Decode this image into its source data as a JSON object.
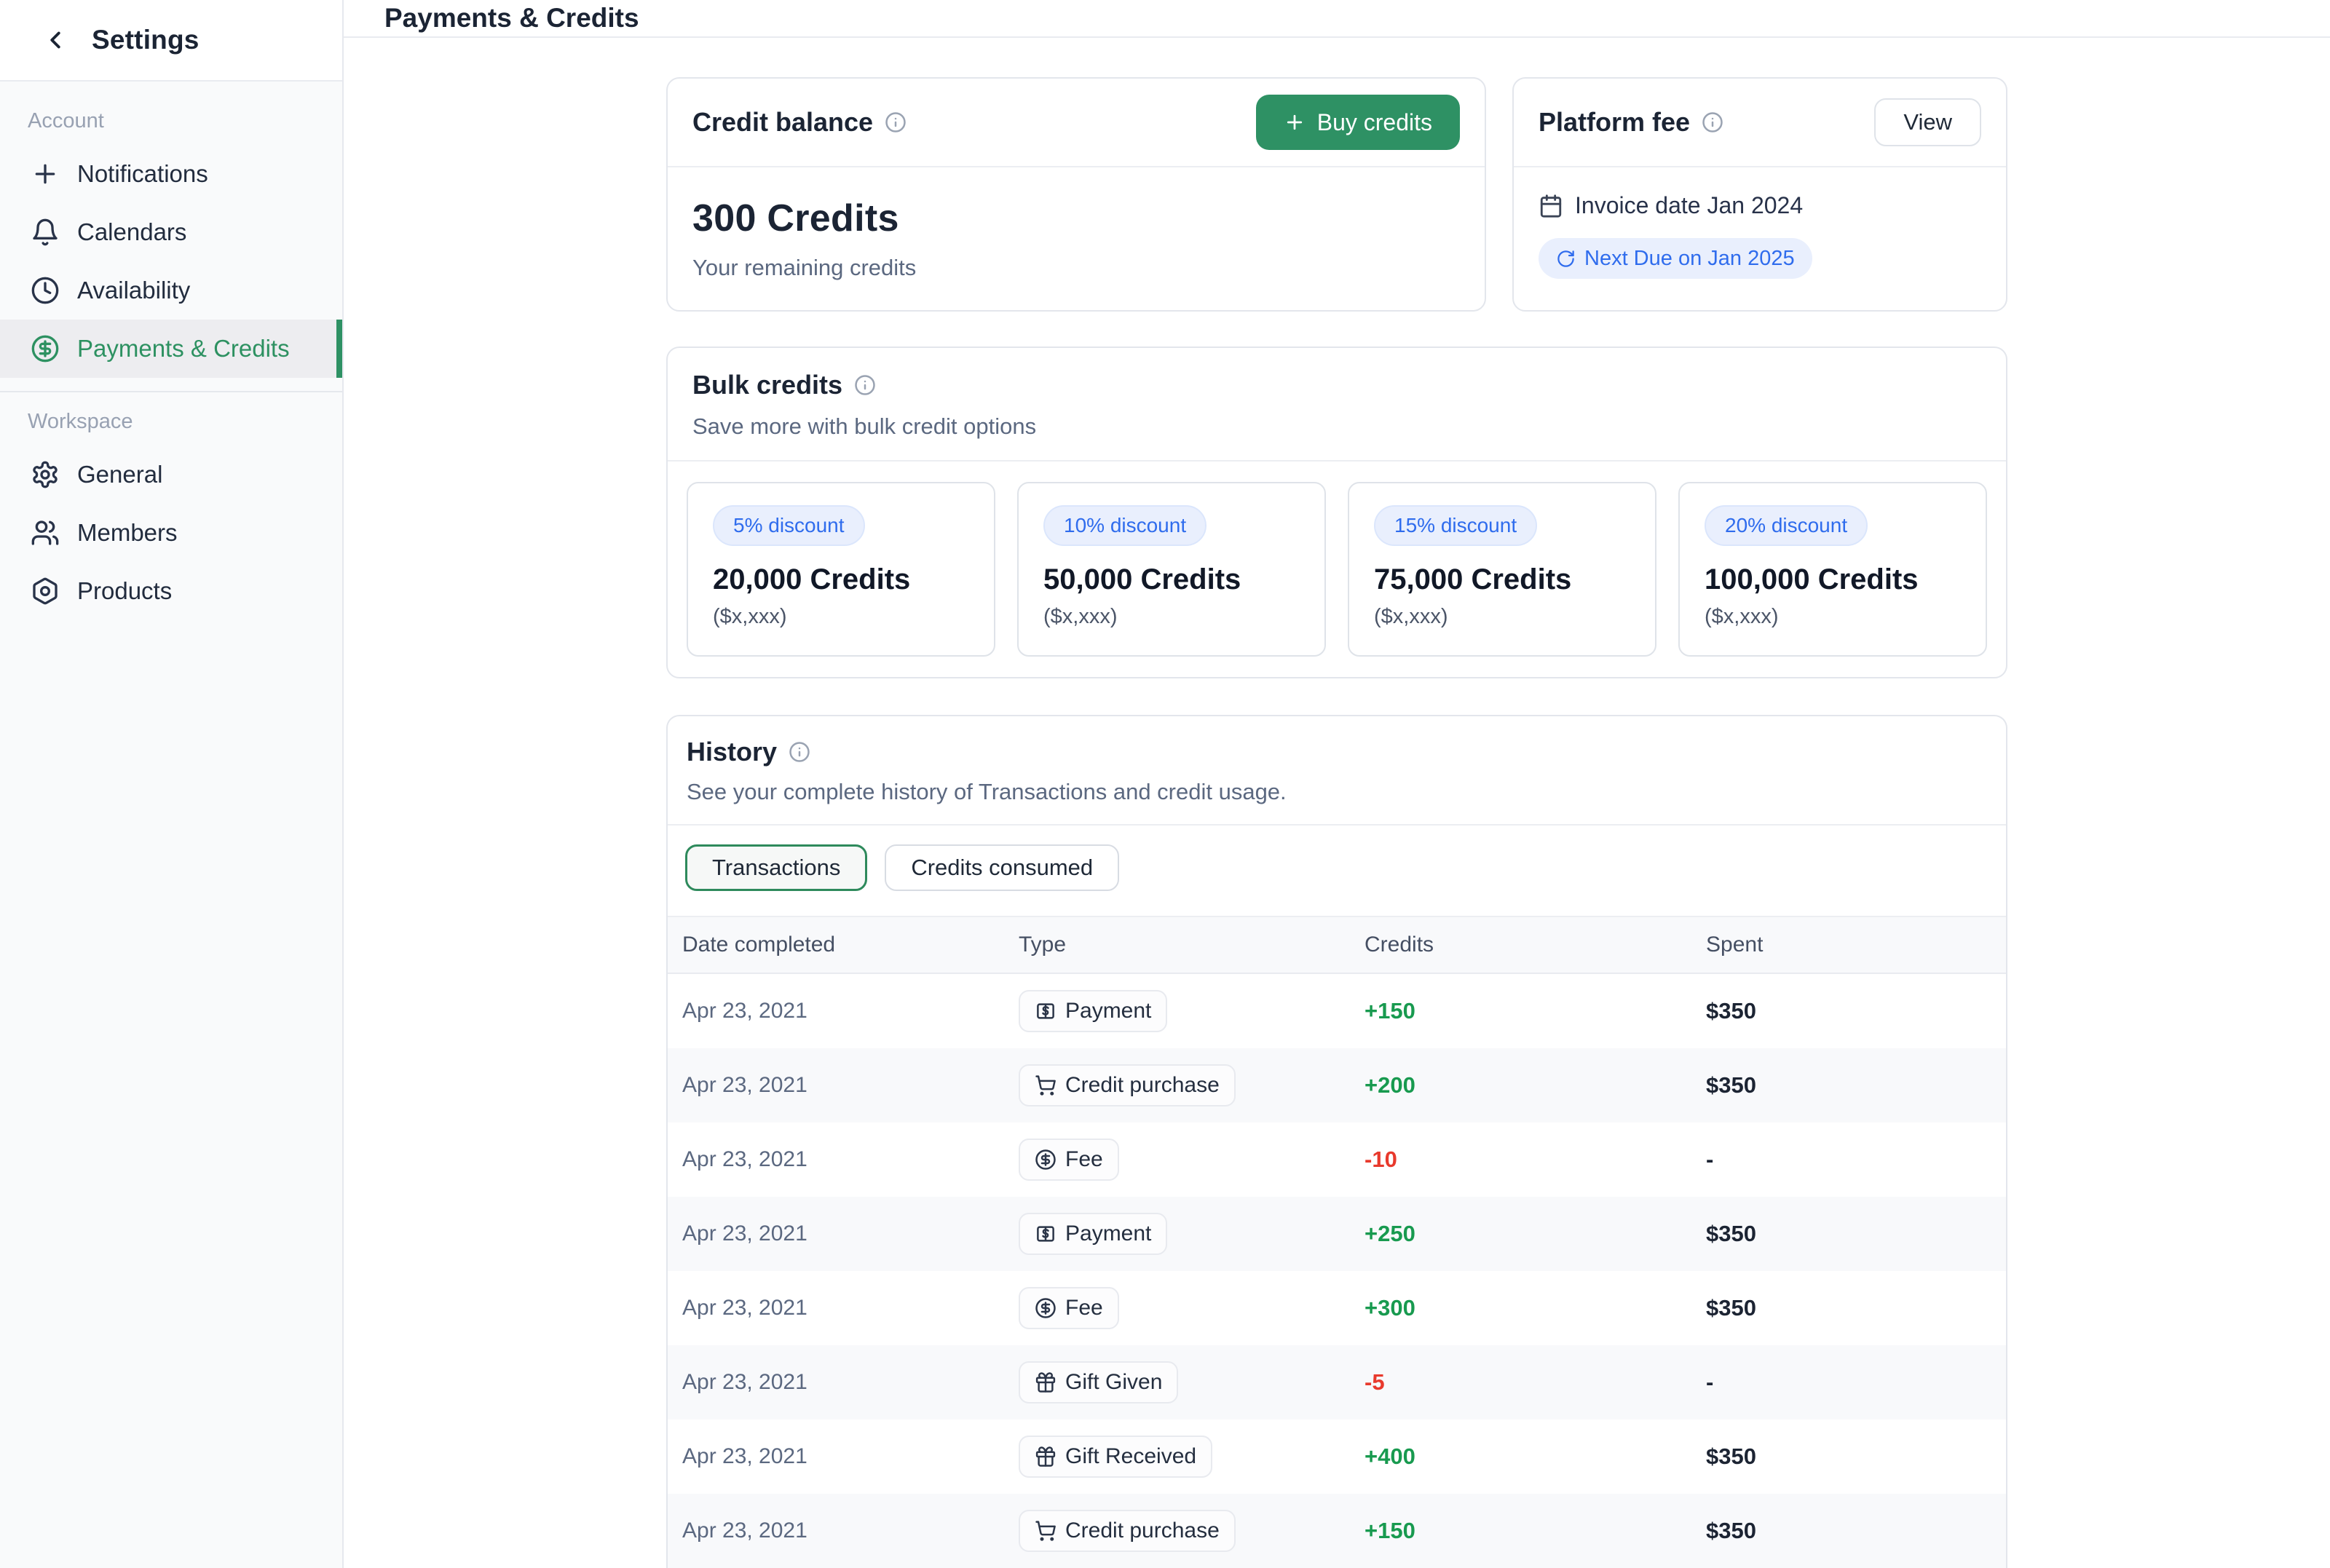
{
  "sidebar": {
    "title": "Settings",
    "sections": [
      {
        "label": "Account",
        "items": [
          {
            "label": "Notifications"
          },
          {
            "label": "Calendars"
          },
          {
            "label": "Availability"
          },
          {
            "label": "Payments & Credits"
          }
        ]
      },
      {
        "label": "Workspace",
        "items": [
          {
            "label": "General"
          },
          {
            "label": "Members"
          },
          {
            "label": "Products"
          }
        ]
      }
    ]
  },
  "header": {
    "title": "Payments & Credits"
  },
  "credit_balance": {
    "title": "Credit balance",
    "buy_button": "Buy credits",
    "amount": "300 Credits",
    "subtitle": "Your remaining credits"
  },
  "platform_fee": {
    "title": "Platform fee",
    "view_button": "View",
    "invoice_date": "Invoice date Jan 2024",
    "next_due": "Next Due on Jan 2025"
  },
  "bulk_credits": {
    "title": "Bulk credits",
    "subtitle": "Save more with bulk credit options",
    "tiers": [
      {
        "discount": "5% discount",
        "credits": "20,000 Credits",
        "price": "($x,xxx)"
      },
      {
        "discount": "10% discount",
        "credits": "50,000 Credits",
        "price": "($x,xxx)"
      },
      {
        "discount": "15% discount",
        "credits": "75,000 Credits",
        "price": "($x,xxx)"
      },
      {
        "discount": "20% discount",
        "credits": "100,000 Credits",
        "price": "($x,xxx)"
      }
    ]
  },
  "history": {
    "title": "History",
    "subtitle": "See your complete history of Transactions and credit usage.",
    "tabs": [
      {
        "label": "Transactions",
        "active": true
      },
      {
        "label": "Credits consumed",
        "active": false
      }
    ],
    "columns": [
      "Date completed",
      "Type",
      "Credits",
      "Spent"
    ],
    "rows": [
      {
        "date": "Apr 23, 2021",
        "type": "Payment",
        "type_icon": "banknote-icon",
        "credits": "+150",
        "credits_color": "green",
        "spent": "$350"
      },
      {
        "date": "Apr 23, 2021",
        "type": "Credit purchase",
        "type_icon": "cart-icon",
        "credits": "+200",
        "credits_color": "green",
        "spent": "$350"
      },
      {
        "date": "Apr 23, 2021",
        "type": "Fee",
        "type_icon": "dollar-circle-icon",
        "credits": "-10",
        "credits_color": "red",
        "spent": "-"
      },
      {
        "date": "Apr 23, 2021",
        "type": "Payment",
        "type_icon": "banknote-icon",
        "credits": "+250",
        "credits_color": "green",
        "spent": "$350"
      },
      {
        "date": "Apr 23, 2021",
        "type": "Fee",
        "type_icon": "dollar-circle-icon",
        "credits": "+300",
        "credits_color": "green",
        "spent": "$350"
      },
      {
        "date": "Apr 23, 2021",
        "type": "Gift Given",
        "type_icon": "gift-icon",
        "credits": "-5",
        "credits_color": "red",
        "spent": "-"
      },
      {
        "date": "Apr 23, 2021",
        "type": "Gift Received",
        "type_icon": "gift-icon",
        "credits": "+400",
        "credits_color": "green",
        "spent": "$350"
      },
      {
        "date": "Apr 23, 2021",
        "type": "Credit purchase",
        "type_icon": "cart-icon",
        "credits": "+150",
        "credits_color": "green",
        "spent": "$350"
      }
    ]
  },
  "colors": {
    "accent_green": "#2e9164",
    "value_green": "#189a4f",
    "value_red": "#e8392c",
    "badge_blue_text": "#2f6ced",
    "badge_blue_bg": "#e9effd",
    "sidebar_bg": "#f9fafb",
    "stripe_bg": "#f8f9fb",
    "text_dark": "#1b2434",
    "text_slate": "#5b6880"
  }
}
